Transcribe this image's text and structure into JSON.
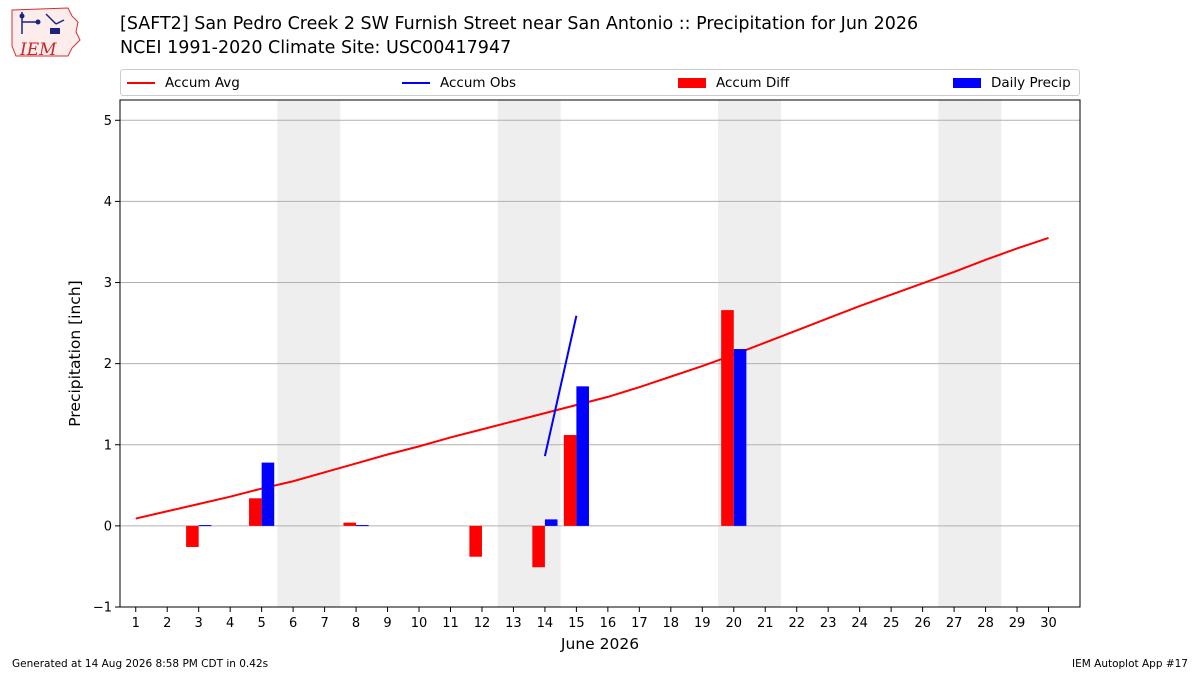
{
  "logo": {
    "text": "IEM",
    "icon": "iowa-state-outline-weather-station-icon"
  },
  "title": {
    "line1": "[SAFT2] San Pedro Creek 2 SW Furnish Street near San Antonio :: Precipitation for Jun 2026",
    "line2": "NCEI 1991-2020 Climate Site: USC00417947"
  },
  "legend": {
    "items": [
      {
        "label": "Accum Avg",
        "kind": "line",
        "color": "#ff0000"
      },
      {
        "label": "Accum Obs",
        "kind": "line",
        "color": "#0000ff"
      },
      {
        "label": "Accum Diff",
        "kind": "box",
        "color": "#ff0000"
      },
      {
        "label": "Daily Precip",
        "kind": "box",
        "color": "#0000ff"
      }
    ]
  },
  "footer": {
    "left": "Generated at 14 Aug 2026 8:58 PM CDT in 0.42s",
    "right": "IEM Autoplot App #17"
  },
  "chart_data": {
    "type": "bar",
    "xlabel": "June 2026",
    "ylabel": "Precipitation [inch]",
    "xlim": [
      0.5,
      31.0
    ],
    "ylim": [
      -1,
      5.25
    ],
    "yticks": [
      -1,
      0,
      1,
      2,
      3,
      4,
      5
    ],
    "ytick_labels": [
      "−1",
      "0",
      "1",
      "2",
      "3",
      "4",
      "5"
    ],
    "xticks": [
      1,
      2,
      3,
      4,
      5,
      6,
      7,
      8,
      9,
      10,
      11,
      12,
      13,
      14,
      15,
      16,
      17,
      18,
      19,
      20,
      21,
      22,
      23,
      24,
      25,
      26,
      27,
      28,
      29,
      30
    ],
    "grid": "horizontal",
    "weekend_shading": [
      [
        6,
        7
      ],
      [
        13,
        14
      ],
      [
        20,
        21
      ],
      [
        27,
        28
      ]
    ],
    "weekend_color": "#eeeeee",
    "series": [
      {
        "name": "Accum Avg",
        "kind": "line",
        "color": "#ff0000",
        "x": [
          1,
          2,
          3,
          4,
          5,
          6,
          7,
          8,
          9,
          10,
          11,
          12,
          13,
          14,
          15,
          16,
          17,
          18,
          19,
          20,
          21,
          22,
          23,
          24,
          25,
          26,
          27,
          28,
          29,
          30
        ],
        "values": [
          0.09,
          0.18,
          0.27,
          0.36,
          0.46,
          0.55,
          0.66,
          0.77,
          0.88,
          0.98,
          1.09,
          1.19,
          1.29,
          1.39,
          1.49,
          1.59,
          1.71,
          1.84,
          1.97,
          2.11,
          2.26,
          2.41,
          2.56,
          2.71,
          2.85,
          2.99,
          3.13,
          3.28,
          3.42,
          3.55
        ]
      },
      {
        "name": "Accum Obs",
        "kind": "line",
        "color": "#0000ff",
        "x": [
          14,
          15
        ],
        "values": [
          0.86,
          2.59
        ]
      },
      {
        "name": "Accum Diff",
        "kind": "bar",
        "color": "#ff0000",
        "x": [
          3,
          5,
          8,
          12,
          14,
          15,
          20
        ],
        "values": [
          -0.26,
          0.34,
          0.04,
          -0.38,
          -0.51,
          1.12,
          2.66
        ]
      },
      {
        "name": "Daily Precip",
        "kind": "bar",
        "color": "#0000ff",
        "x": [
          3,
          5,
          8,
          14,
          15,
          20
        ],
        "values": [
          0.01,
          0.78,
          0.01,
          0.08,
          1.72,
          2.18
        ]
      }
    ]
  }
}
